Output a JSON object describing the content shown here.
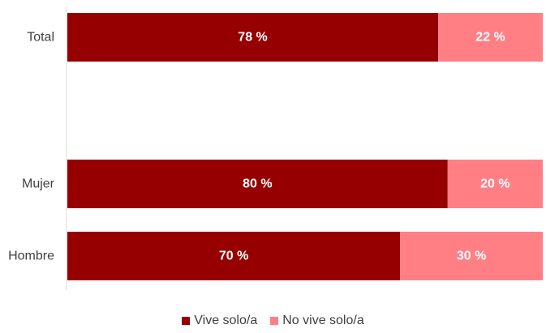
{
  "chart_data": {
    "type": "bar",
    "orientation": "horizontal",
    "stacked": true,
    "categories": [
      "Total",
      "Mujer",
      "Hombre"
    ],
    "series": [
      {
        "name": "Vive solo/a",
        "values": [
          78,
          80,
          70
        ],
        "labels": [
          "78 %",
          "80 %",
          "70 %"
        ],
        "color": "#960000"
      },
      {
        "name": "No vive solo/a",
        "values": [
          22,
          20,
          30
        ],
        "labels": [
          "22 %",
          "20 %",
          "30 %"
        ],
        "color": "#ff7f85"
      }
    ],
    "xlim": [
      0,
      100
    ],
    "legend_position": "bottom-center",
    "grid": false
  }
}
